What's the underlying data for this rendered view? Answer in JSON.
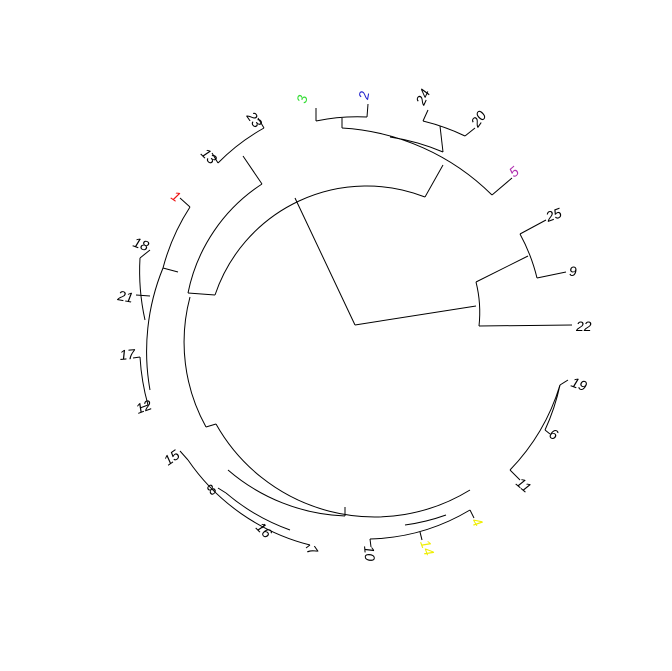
{
  "diagram": {
    "type": "circular-dendrogram",
    "colors": {
      "default": "#000000",
      "green": "#33dd33",
      "blue": "#2222cc",
      "purple": "#b030b0",
      "red": "#ee1111",
      "yellow": "#eeee00"
    },
    "leaves": [
      {
        "label": "3",
        "color": "#33dd33"
      },
      {
        "label": "2",
        "color": "#2222cc"
      },
      {
        "label": "24",
        "color": "#000000"
      },
      {
        "label": "20",
        "color": "#000000"
      },
      {
        "label": "5",
        "color": "#b030b0"
      },
      {
        "label": "25",
        "color": "#000000"
      },
      {
        "label": "9",
        "color": "#000000"
      },
      {
        "label": "22",
        "color": "#000000"
      },
      {
        "label": "19",
        "color": "#000000"
      },
      {
        "label": "6",
        "color": "#000000"
      },
      {
        "label": "11",
        "color": "#000000"
      },
      {
        "label": "4",
        "color": "#eeee00"
      },
      {
        "label": "14",
        "color": "#eeee00"
      },
      {
        "label": "10",
        "color": "#000000"
      },
      {
        "label": "7",
        "color": "#000000"
      },
      {
        "label": "16",
        "color": "#000000"
      },
      {
        "label": "8",
        "color": "#000000"
      },
      {
        "label": "15",
        "color": "#000000"
      },
      {
        "label": "12",
        "color": "#000000"
      },
      {
        "label": "17",
        "color": "#000000"
      },
      {
        "label": "21",
        "color": "#000000"
      },
      {
        "label": "18",
        "color": "#000000"
      },
      {
        "label": "1",
        "color": "#ee1111"
      },
      {
        "label": "13",
        "color": "#000000"
      },
      {
        "label": "23",
        "color": "#000000"
      }
    ]
  }
}
